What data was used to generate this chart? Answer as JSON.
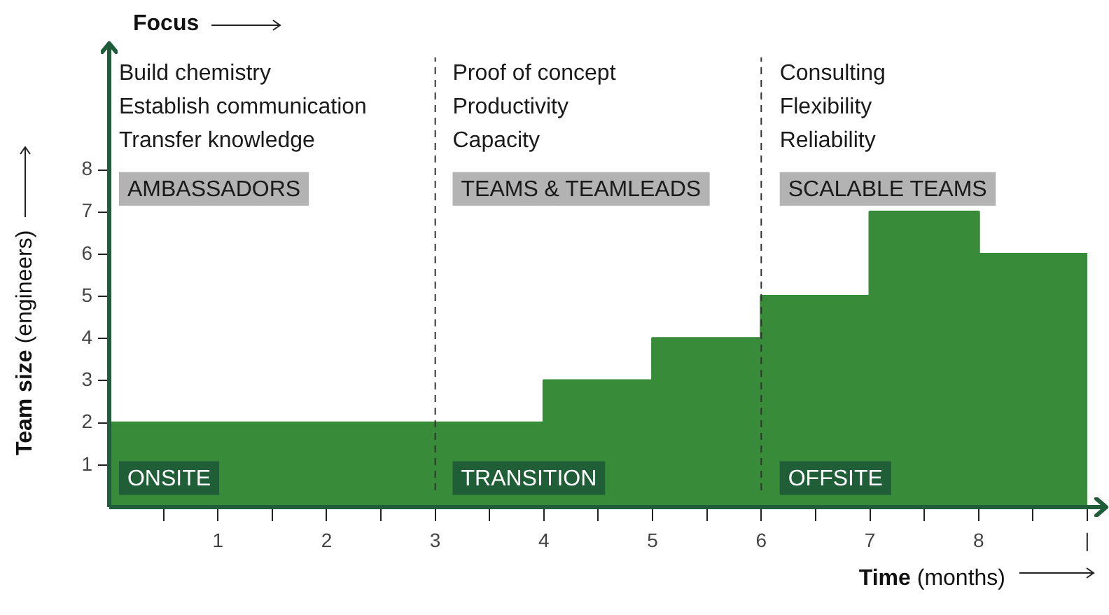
{
  "chart_data": {
    "type": "area",
    "title": "Focus",
    "xlabel": "Time (months)",
    "ylabel": "Team size (engineers)",
    "x": [
      0,
      4,
      4,
      5,
      5,
      6,
      6,
      7,
      7,
      8,
      8,
      9
    ],
    "series": [
      {
        "color": "#378b39",
        "values": [
          2,
          2,
          3,
          3,
          4,
          4,
          5,
          5,
          7,
          7,
          6,
          6
        ]
      }
    ],
    "xlim": [
      0,
      9.2
    ],
    "ylim": [
      0,
      11
    ],
    "xticks": [
      {
        "value": 0.5,
        "label": null
      },
      1,
      {
        "value": 1.5,
        "label": null
      },
      2,
      {
        "value": 2.5,
        "label": null
      },
      3,
      {
        "value": 3.5,
        "label": null
      },
      4,
      {
        "value": 4.5,
        "label": null
      },
      5,
      {
        "value": 5.5,
        "label": null
      },
      6,
      {
        "value": 6.5,
        "label": null
      },
      7,
      {
        "value": 7.5,
        "label": null
      },
      8,
      {
        "value": 8.5,
        "label": null
      },
      {
        "value": 9,
        "label": "|"
      }
    ],
    "yticks": [
      1,
      2,
      3,
      4,
      5,
      6,
      7,
      8
    ],
    "grid": false,
    "legend": false,
    "ref_lines": [
      {
        "axis": "x",
        "value": 3,
        "line_style": "dashed",
        "color": "#333333"
      },
      {
        "axis": "x",
        "value": 6,
        "line_style": "dashed",
        "color": "#333333"
      }
    ],
    "annotations": [
      "Build chemistry",
      "Establish communication",
      "Transfer knowledge",
      "Proof of concept",
      "Productivity",
      "Capacity",
      "Consulting",
      "Flexibility",
      "Reliability",
      "AMBASSADORS",
      "TEAMS & TEAMLEADS",
      "SCALABLE TEAMS",
      "ONSITE",
      "TRANSITION",
      "OFFSITE"
    ]
  }
}
